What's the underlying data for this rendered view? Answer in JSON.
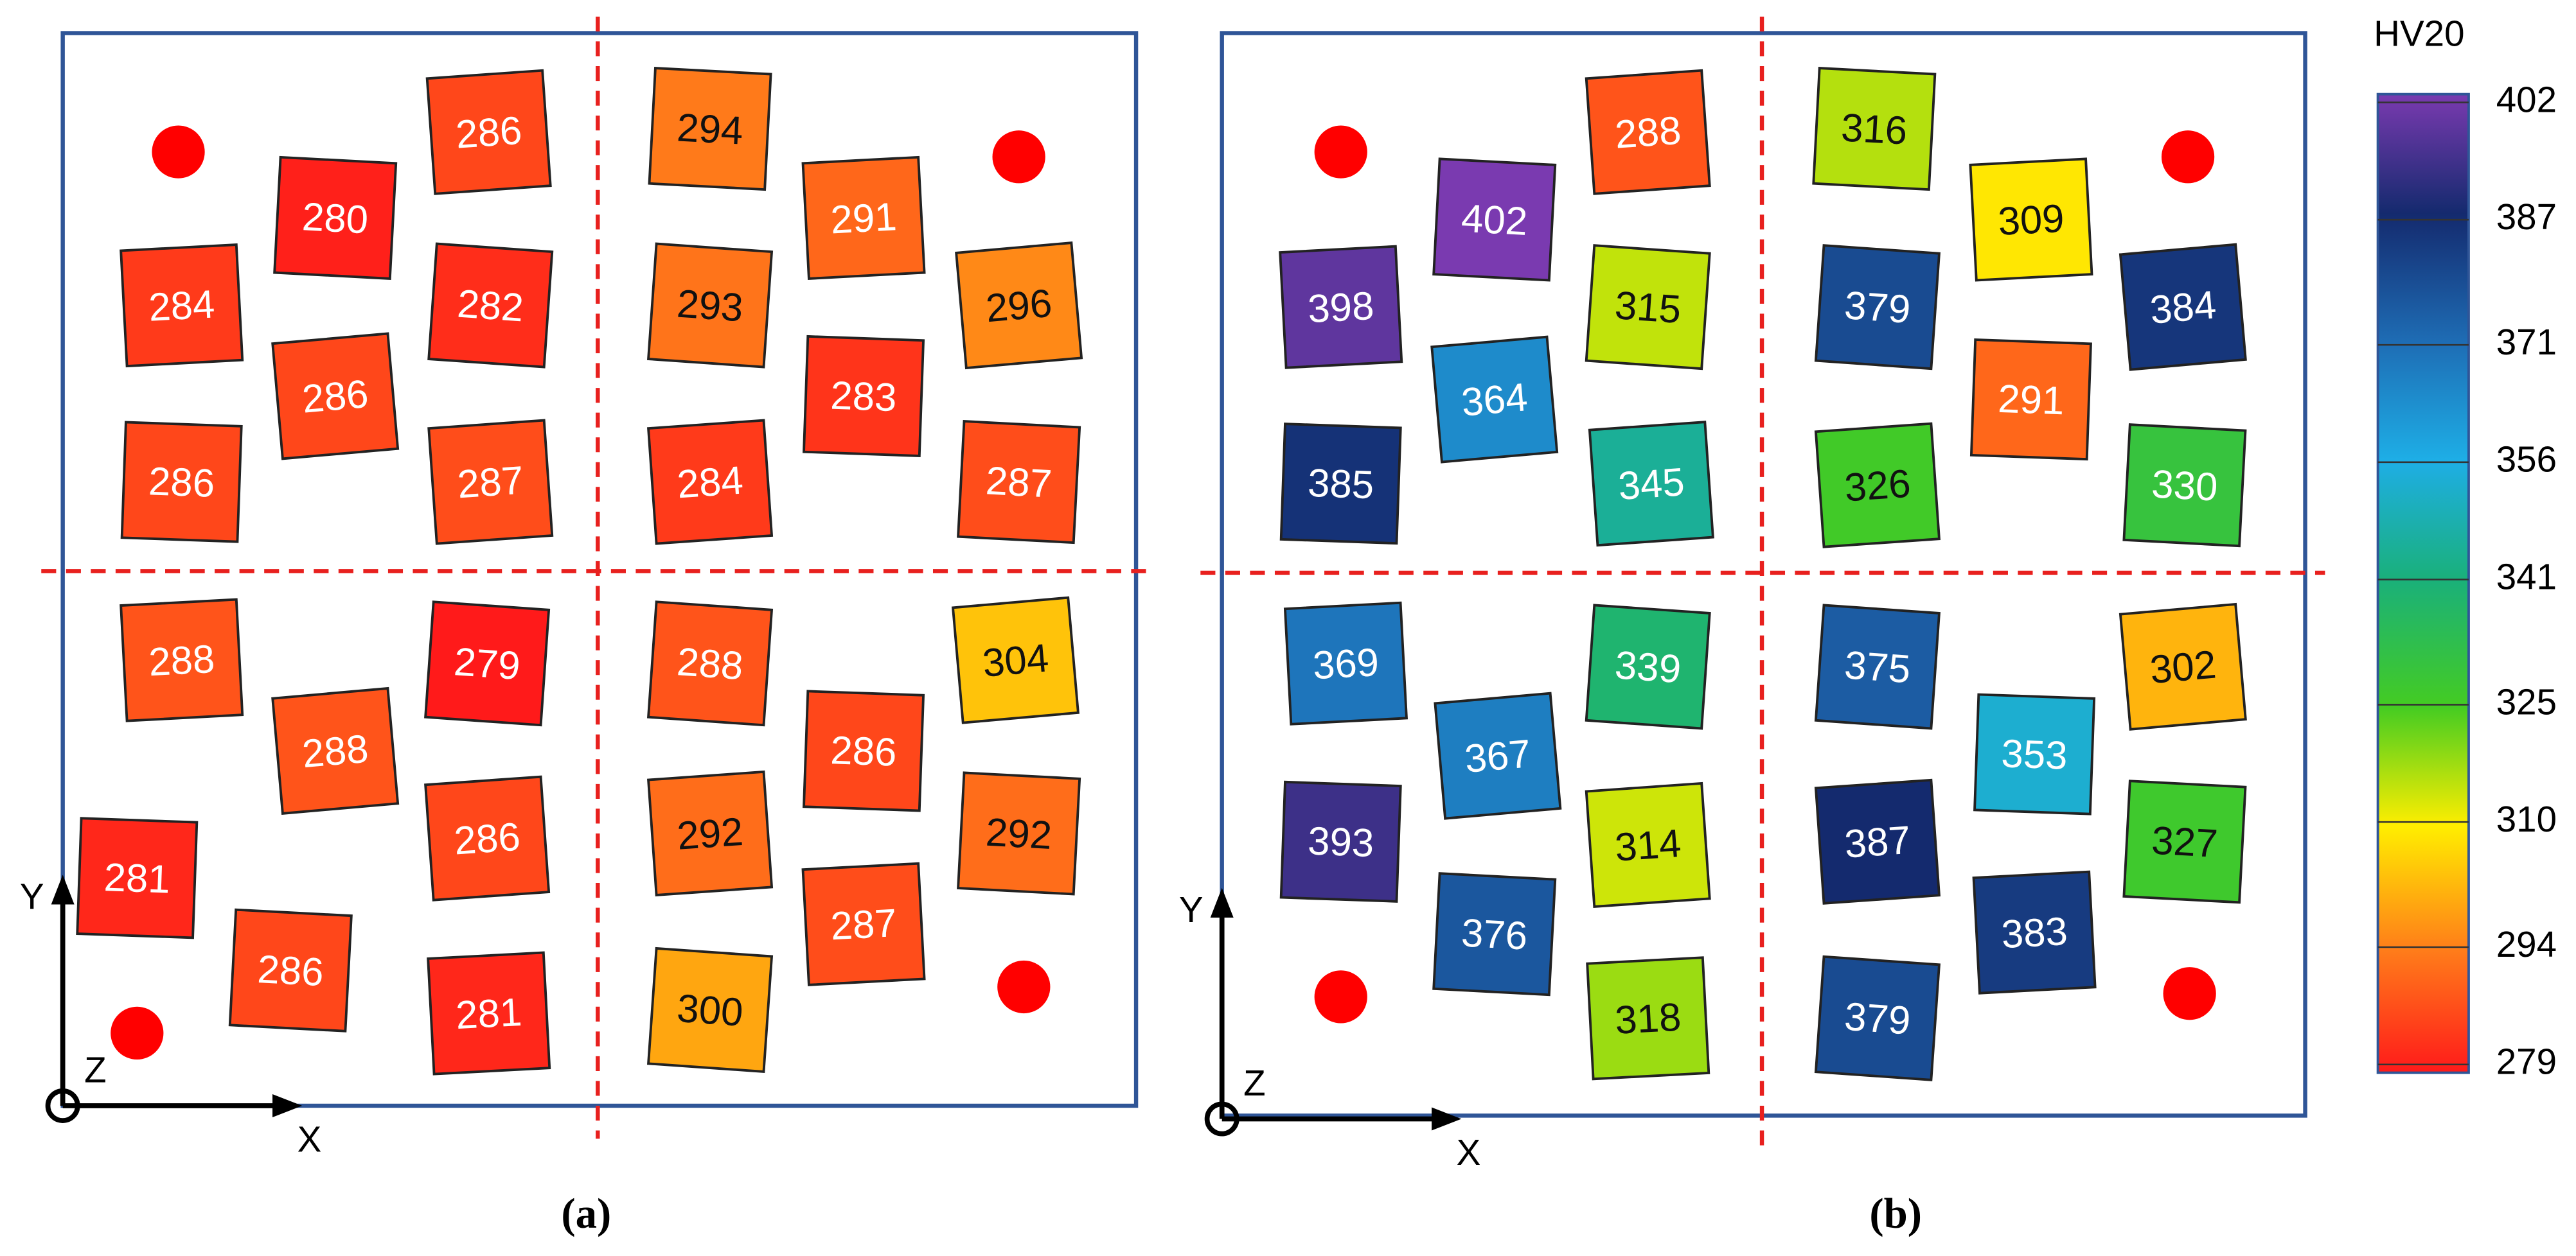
{
  "panels": [
    {
      "label": "(a)",
      "axes": {
        "x": "X",
        "y": "Y",
        "z": "Z"
      },
      "samples": [
        286,
        280,
        284,
        282,
        286,
        286,
        287,
        294,
        291,
        293,
        296,
        283,
        284,
        287,
        288,
        279,
        288,
        281,
        286,
        286,
        281,
        288,
        304,
        286,
        292,
        292,
        287,
        300
      ]
    },
    {
      "label": "(b)",
      "axes": {
        "x": "X",
        "y": "Y",
        "z": "Z"
      },
      "samples": [
        288,
        402,
        398,
        315,
        364,
        385,
        345,
        316,
        309,
        379,
        384,
        291,
        326,
        330,
        369,
        339,
        367,
        393,
        314,
        376,
        318,
        375,
        302,
        353,
        387,
        327,
        383,
        379
      ]
    }
  ],
  "colorbar": {
    "title": "HV20",
    "range": [
      279,
      402
    ],
    "ticks": [
      402,
      387,
      371,
      356,
      341,
      325,
      310,
      294,
      279
    ],
    "colors": [
      "#7a3ab0",
      "#142a6e",
      "#1e6cb4",
      "#1eaee6",
      "#1ab07a",
      "#44cc22",
      "#ffee00",
      "#ff7a1a",
      "#ff1a1a"
    ]
  }
}
